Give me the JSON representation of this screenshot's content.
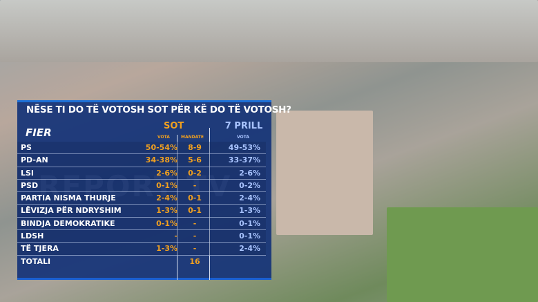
{
  "title": "NËSE TI DO TË VOTOSH SOT PËR KË DO TË VOTOSH?",
  "region": "FIER",
  "columns": {
    "sot": "SOT",
    "sot_vota": "VOTA",
    "sot_mandate": "MANDATE",
    "prill": "7 PRILL",
    "prill_vota": "VOTA"
  },
  "watermark": "REPORT TV",
  "rows": [
    {
      "party": "PS",
      "vota": "50-54%",
      "mandate": "8-9",
      "prill": "49-53%"
    },
    {
      "party": "PD-AN",
      "vota": "34-38%",
      "mandate": "5-6",
      "prill": "33-37%"
    },
    {
      "party": "LSI",
      "vota": "2-6%",
      "mandate": "0-2",
      "prill": "2-6%"
    },
    {
      "party": "PSD",
      "vota": "0-1%",
      "mandate": "-",
      "prill": "0-2%"
    },
    {
      "party": "PARTIA NISMA THURJE",
      "vota": "2-4%",
      "mandate": "0-1",
      "prill": "2-4%"
    },
    {
      "party": "LËVIZJA PËR NDRYSHIM",
      "vota": "1-3%",
      "mandate": "0-1",
      "prill": "1-3%"
    },
    {
      "party": "BINDJA DEMOKRATIKE",
      "vota": "0-1%",
      "mandate": "-",
      "prill": "0-1%"
    },
    {
      "party": "LDSH",
      "vota": "-",
      "mandate": "-",
      "prill": "0-1%"
    },
    {
      "party": "TË TJERA",
      "vota": "1-3%",
      "mandate": "-",
      "prill": "2-4%"
    },
    {
      "party": "TOTALI",
      "vota": "",
      "mandate": "16",
      "prill": ""
    }
  ],
  "colors": {
    "panel": "#163478",
    "sot": "#f0a020",
    "prill": "#a9c4ff"
  }
}
